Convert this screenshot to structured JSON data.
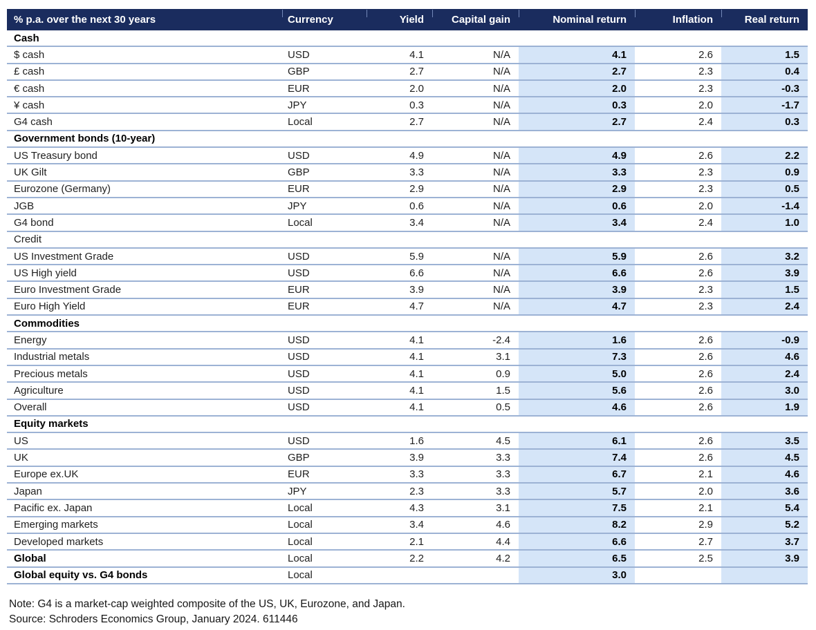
{
  "table": {
    "columns": [
      "% p.a. over the next 30 years",
      "Currency",
      "Yield",
      "Capital gain",
      "Nominal return",
      "Inflation",
      "Real return"
    ],
    "sections": [
      {
        "label": "Cash",
        "bold": true,
        "rows": [
          {
            "name": "$ cash",
            "bold": false,
            "currency": "USD",
            "yield": "4.1",
            "capital_gain": "N/A",
            "nominal_return": "4.1",
            "inflation": "2.6",
            "real_return": "1.5"
          },
          {
            "name": "£ cash",
            "bold": false,
            "currency": "GBP",
            "yield": "2.7",
            "capital_gain": "N/A",
            "nominal_return": "2.7",
            "inflation": "2.3",
            "real_return": "0.4"
          },
          {
            "name": "€ cash",
            "bold": false,
            "currency": "EUR",
            "yield": "2.0",
            "capital_gain": "N/A",
            "nominal_return": "2.0",
            "inflation": "2.3",
            "real_return": "-0.3"
          },
          {
            "name": "¥ cash",
            "bold": false,
            "currency": "JPY",
            "yield": "0.3",
            "capital_gain": "N/A",
            "nominal_return": "0.3",
            "inflation": "2.0",
            "real_return": "-1.7"
          },
          {
            "name": "G4 cash",
            "bold": false,
            "currency": "Local",
            "yield": "2.7",
            "capital_gain": "N/A",
            "nominal_return": "2.7",
            "inflation": "2.4",
            "real_return": "0.3"
          }
        ]
      },
      {
        "label": "Government bonds (10-year)",
        "bold": true,
        "rows": [
          {
            "name": "US Treasury bond",
            "bold": false,
            "currency": "USD",
            "yield": "4.9",
            "capital_gain": "N/A",
            "nominal_return": "4.9",
            "inflation": "2.6",
            "real_return": "2.2"
          },
          {
            "name": "UK Gilt",
            "bold": false,
            "currency": "GBP",
            "yield": "3.3",
            "capital_gain": "N/A",
            "nominal_return": "3.3",
            "inflation": "2.3",
            "real_return": "0.9"
          },
          {
            "name": "Eurozone (Germany)",
            "bold": false,
            "currency": "EUR",
            "yield": "2.9",
            "capital_gain": "N/A",
            "nominal_return": "2.9",
            "inflation": "2.3",
            "real_return": "0.5"
          },
          {
            "name": "JGB",
            "bold": false,
            "currency": "JPY",
            "yield": "0.6",
            "capital_gain": "N/A",
            "nominal_return": "0.6",
            "inflation": "2.0",
            "real_return": "-1.4"
          },
          {
            "name": "G4 bond",
            "bold": false,
            "currency": "Local",
            "yield": "3.4",
            "capital_gain": "N/A",
            "nominal_return": "3.4",
            "inflation": "2.4",
            "real_return": "1.0"
          }
        ]
      },
      {
        "label": "Credit",
        "bold": false,
        "rows": [
          {
            "name": "US Investment Grade",
            "bold": false,
            "currency": "USD",
            "yield": "5.9",
            "capital_gain": "N/A",
            "nominal_return": "5.9",
            "inflation": "2.6",
            "real_return": "3.2"
          },
          {
            "name": "US High yield",
            "bold": false,
            "currency": "USD",
            "yield": "6.6",
            "capital_gain": "N/A",
            "nominal_return": "6.6",
            "inflation": "2.6",
            "real_return": "3.9"
          },
          {
            "name": "Euro Investment Grade",
            "bold": false,
            "currency": "EUR",
            "yield": "3.9",
            "capital_gain": "N/A",
            "nominal_return": "3.9",
            "inflation": "2.3",
            "real_return": "1.5"
          },
          {
            "name": "Euro High Yield",
            "bold": false,
            "currency": "EUR",
            "yield": "4.7",
            "capital_gain": "N/A",
            "nominal_return": "4.7",
            "inflation": "2.3",
            "real_return": "2.4"
          }
        ]
      },
      {
        "label": "Commodities",
        "bold": true,
        "rows": [
          {
            "name": "Energy",
            "bold": false,
            "currency": "USD",
            "yield": "4.1",
            "capital_gain": "-2.4",
            "nominal_return": "1.6",
            "inflation": "2.6",
            "real_return": "-0.9"
          },
          {
            "name": "Industrial metals",
            "bold": false,
            "currency": "USD",
            "yield": "4.1",
            "capital_gain": "3.1",
            "nominal_return": "7.3",
            "inflation": "2.6",
            "real_return": "4.6"
          },
          {
            "name": "Precious metals",
            "bold": false,
            "currency": "USD",
            "yield": "4.1",
            "capital_gain": "0.9",
            "nominal_return": "5.0",
            "inflation": "2.6",
            "real_return": "2.4"
          },
          {
            "name": "Agriculture",
            "bold": false,
            "currency": "USD",
            "yield": "4.1",
            "capital_gain": "1.5",
            "nominal_return": "5.6",
            "inflation": "2.6",
            "real_return": "3.0"
          },
          {
            "name": "Overall",
            "bold": false,
            "currency": "USD",
            "yield": "4.1",
            "capital_gain": "0.5",
            "nominal_return": "4.6",
            "inflation": "2.6",
            "real_return": "1.9"
          }
        ]
      },
      {
        "label": "Equity markets",
        "bold": true,
        "rows": [
          {
            "name": "US",
            "bold": false,
            "currency": "USD",
            "yield": "1.6",
            "capital_gain": "4.5",
            "nominal_return": "6.1",
            "inflation": "2.6",
            "real_return": "3.5"
          },
          {
            "name": "UK",
            "bold": false,
            "currency": "GBP",
            "yield": "3.9",
            "capital_gain": "3.3",
            "nominal_return": "7.4",
            "inflation": "2.6",
            "real_return": "4.5"
          },
          {
            "name": "Europe ex.UK",
            "bold": false,
            "currency": "EUR",
            "yield": "3.3",
            "capital_gain": "3.3",
            "nominal_return": "6.7",
            "inflation": "2.1",
            "real_return": "4.6"
          },
          {
            "name": "Japan",
            "bold": false,
            "currency": "JPY",
            "yield": "2.3",
            "capital_gain": "3.3",
            "nominal_return": "5.7",
            "inflation": "2.0",
            "real_return": "3.6"
          },
          {
            "name": "Pacific ex. Japan",
            "bold": false,
            "currency": "Local",
            "yield": "4.3",
            "capital_gain": "3.1",
            "nominal_return": "7.5",
            "inflation": "2.1",
            "real_return": "5.4"
          },
          {
            "name": "Emerging markets",
            "bold": false,
            "currency": "Local",
            "yield": "3.4",
            "capital_gain": "4.6",
            "nominal_return": "8.2",
            "inflation": "2.9",
            "real_return": "5.2"
          },
          {
            "name": "Developed markets",
            "bold": false,
            "currency": "Local",
            "yield": "2.1",
            "capital_gain": "4.4",
            "nominal_return": "6.6",
            "inflation": "2.7",
            "real_return": "3.7"
          },
          {
            "name": "Global",
            "bold": true,
            "currency": "Local",
            "yield": "2.2",
            "capital_gain": "4.2",
            "nominal_return": "6.5",
            "inflation": "2.5",
            "real_return": "3.9"
          },
          {
            "name": "Global equity vs. G4 bonds",
            "bold": true,
            "currency": "Local",
            "yield": "",
            "capital_gain": "",
            "nominal_return": "3.0",
            "inflation": "",
            "real_return": ""
          }
        ]
      }
    ]
  },
  "footer": {
    "note": "Note: G4 is a market-cap weighted composite of the US, UK, Eurozone, and Japan.",
    "source": "Source: Schroders Economics Group, January 2024. 611446"
  },
  "colors": {
    "header_bg": "#1a2c5e",
    "header_text": "#ffffff",
    "column_shade": "#d5e5f8",
    "divider": "#9cb2d4",
    "text": "#1f1f1f"
  }
}
